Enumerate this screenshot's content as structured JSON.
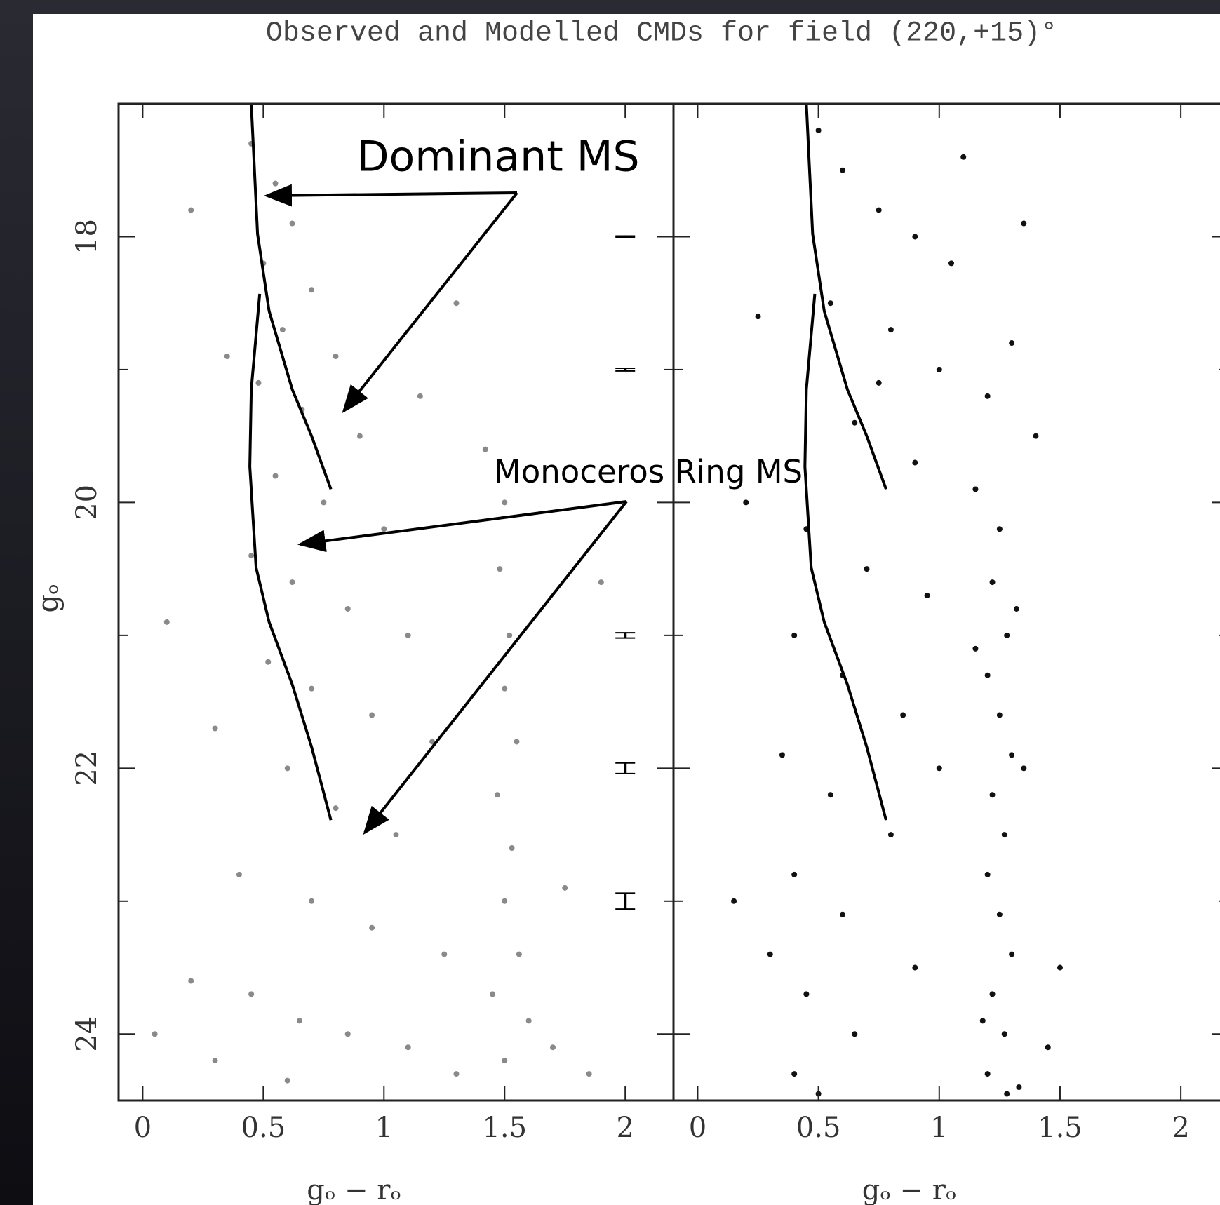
{
  "title": "Observed and Modelled CMDs for field  (220,+15)°",
  "chart_data": [
    {
      "type": "scatter",
      "ylabel": "gₒ",
      "xlabel": "gₒ − rₒ",
      "xlim": [
        -0.1,
        2.2
      ],
      "ylim": [
        17,
        24.5
      ],
      "y_inverted": true,
      "xticks": [
        0,
        0.5,
        1,
        1.5,
        2
      ],
      "yticks": [
        18,
        20,
        22,
        24
      ],
      "yminor_ticks": [
        19,
        21,
        23
      ],
      "show_ytick_labels": true,
      "annotations": [
        "Dominant MS",
        "Monoceros Ring MS"
      ],
      "series": [
        {
          "color": "#8a8a8a",
          "x": [
            0.45,
            0.55,
            0.62,
            0.5,
            0.7,
            0.58,
            0.8,
            0.48,
            0.66,
            0.9,
            0.55,
            0.75,
            1.0,
            0.45,
            0.62,
            0.85,
            1.1,
            0.52,
            0.7,
            0.95,
            1.2,
            0.6,
            0.8,
            1.05,
            0.4,
            0.7,
            0.95,
            1.25,
            0.2,
            0.45,
            0.65,
            0.85,
            1.1,
            0.3,
            0.05,
            1.3,
            1.7,
            1.85,
            1.5,
            1.48,
            1.52,
            1.5,
            1.55,
            1.47,
            1.53,
            1.5,
            1.56,
            1.45,
            1.6,
            1.5,
            1.42,
            1.3,
            0.2,
            0.1,
            0.3,
            1.75,
            1.9,
            0.35,
            1.15,
            0.6
          ],
          "y": [
            17.3,
            17.6,
            17.9,
            18.2,
            18.4,
            18.7,
            18.9,
            19.1,
            19.3,
            19.5,
            19.8,
            20.0,
            20.2,
            20.4,
            20.6,
            20.8,
            21.0,
            21.2,
            21.4,
            21.6,
            21.8,
            22.0,
            22.3,
            22.5,
            22.8,
            23.0,
            23.2,
            23.4,
            23.6,
            23.7,
            23.9,
            24.0,
            24.1,
            24.2,
            24.0,
            24.3,
            24.1,
            24.3,
            20.0,
            20.5,
            21.0,
            21.4,
            21.8,
            22.2,
            22.6,
            23.0,
            23.4,
            23.7,
            23.9,
            24.2,
            19.6,
            18.5,
            17.8,
            20.9,
            21.7,
            22.9,
            20.6,
            18.9,
            19.2,
            24.35
          ]
        }
      ],
      "lines": [
        {
          "color": "#000000",
          "x": [
            0.45,
            0.476,
            0.524,
            0.62,
            0.7,
            0.78
          ],
          "y": [
            17.0,
            17.98,
            18.56,
            19.15,
            19.5,
            19.9
          ]
        },
        {
          "color": "#000000",
          "x": [
            0.485,
            0.45,
            0.444,
            0.47,
            0.524,
            0.62,
            0.7,
            0.78
          ],
          "y": [
            18.43,
            19.15,
            19.73,
            20.49,
            20.9,
            21.37,
            21.84,
            22.39
          ]
        }
      ],
      "errorbars": {
        "x": 2,
        "y": [
          18,
          19,
          21,
          22,
          23
        ],
        "err": [
          0.005,
          0.01,
          0.02,
          0.04,
          0.06
        ]
      }
    },
    {
      "type": "scatter",
      "xlabel": "gₒ − rₒ",
      "xlim": [
        -0.1,
        2.2
      ],
      "ylim": [
        17,
        24.5
      ],
      "y_inverted": true,
      "xticks": [
        0,
        0.5,
        1,
        1.5,
        2
      ],
      "yticks": [
        18,
        20,
        22,
        24
      ],
      "yminor_ticks": [
        19,
        21,
        23
      ],
      "show_ytick_labels": false,
      "series": [
        {
          "color": "#111111",
          "x": [
            0.5,
            0.6,
            0.75,
            0.9,
            1.05,
            0.55,
            0.8,
            1.0,
            1.2,
            0.65,
            0.9,
            1.15,
            0.45,
            0.7,
            0.95,
            0.4,
            0.6,
            0.85,
            0.35,
            0.55,
            0.8,
            0.4,
            0.6,
            0.3,
            0.45,
            0.65,
            0.4,
            0.9,
            1.0,
            1.25,
            1.22,
            1.28,
            1.2,
            1.25,
            1.3,
            1.22,
            1.27,
            1.2,
            1.25,
            1.3,
            1.22,
            1.27,
            1.2,
            1.33,
            1.18,
            1.35,
            1.15,
            1.32,
            1.4,
            1.3,
            1.35,
            0.2,
            0.15,
            1.5,
            1.45,
            0.25,
            1.1,
            0.5,
            1.28,
            0.75
          ],
          "y": [
            17.2,
            17.5,
            17.8,
            18.0,
            18.2,
            18.5,
            18.7,
            19.0,
            19.2,
            19.4,
            19.7,
            19.9,
            20.2,
            20.5,
            20.7,
            21.0,
            21.3,
            21.6,
            21.9,
            22.2,
            22.5,
            22.8,
            23.1,
            23.4,
            23.7,
            24.0,
            24.3,
            23.5,
            22.0,
            20.2,
            20.6,
            21.0,
            21.3,
            21.6,
            21.9,
            22.2,
            22.5,
            22.8,
            23.1,
            23.4,
            23.7,
            24.0,
            24.3,
            24.4,
            23.9,
            22.0,
            21.1,
            20.8,
            19.5,
            18.8,
            17.9,
            20.0,
            23.0,
            23.5,
            24.1,
            18.6,
            17.4,
            24.45,
            24.45,
            19.1
          ]
        }
      ],
      "lines": [
        {
          "color": "#000000",
          "x": [
            0.45,
            0.476,
            0.524,
            0.62,
            0.7,
            0.78
          ],
          "y": [
            17.0,
            17.98,
            18.56,
            19.15,
            19.5,
            19.9
          ]
        },
        {
          "color": "#000000",
          "x": [
            0.485,
            0.45,
            0.444,
            0.47,
            0.524,
            0.62,
            0.7,
            0.78
          ],
          "y": [
            18.43,
            19.15,
            19.73,
            20.49,
            20.9,
            21.37,
            21.84,
            22.39
          ]
        }
      ]
    }
  ]
}
